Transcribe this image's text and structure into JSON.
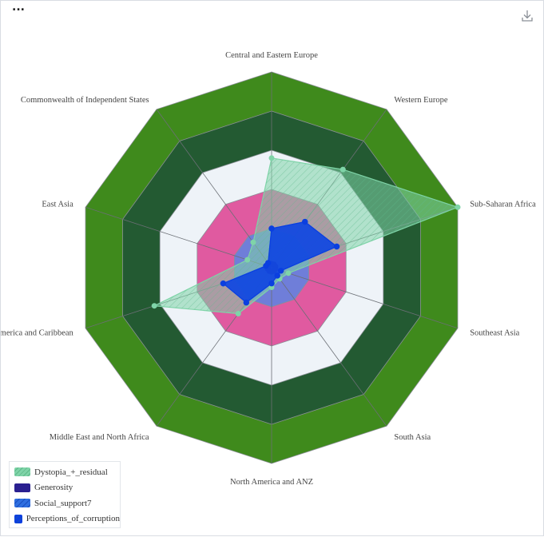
{
  "toolbar": {
    "menu_label": "...",
    "download_icon": "download-icon"
  },
  "chart_data": {
    "type": "radar",
    "categories": [
      "Central and Eastern Europe",
      "Western Europe",
      "Sub-Saharan Africa",
      "Southeast Asia",
      "South Asia",
      "North America and ANZ",
      "Middle East and North Africa",
      "Latin America and Caribbean",
      "East Asia",
      "Commonwealth of Independent States"
    ],
    "range": [
      0,
      1
    ],
    "rings": 5,
    "ring_colors": [
      "#6f7ed9",
      "#e05aa0",
      "#eef3f8",
      "#235a32",
      "#3f8a1c"
    ],
    "series": [
      {
        "name": "Dystopia_+_residual",
        "color": "#7fd4a8",
        "values": [
          0.56,
          0.62,
          1.0,
          0.09,
          0.07,
          0.1,
          0.29,
          0.63,
          0.13,
          0.16
        ]
      },
      {
        "name": "Generosity",
        "color": "#2a2090",
        "values": [
          0.02,
          0.02,
          0.02,
          0.02,
          0.02,
          0.02,
          0.02,
          0.02,
          0.02,
          0.02
        ]
      },
      {
        "name": "Social_support7",
        "color": "#2f6fe0",
        "values": [
          0.2,
          0.29,
          0.35,
          0.05,
          0.05,
          0.08,
          0.22,
          0.26,
          0.03,
          0.03
        ]
      },
      {
        "name": "Perceptions_of_corruption",
        "color": "#0b3fe0",
        "values": [
          0.2,
          0.29,
          0.35,
          0.05,
          0.05,
          0.08,
          0.22,
          0.26,
          0.03,
          0.03
        ]
      }
    ]
  }
}
